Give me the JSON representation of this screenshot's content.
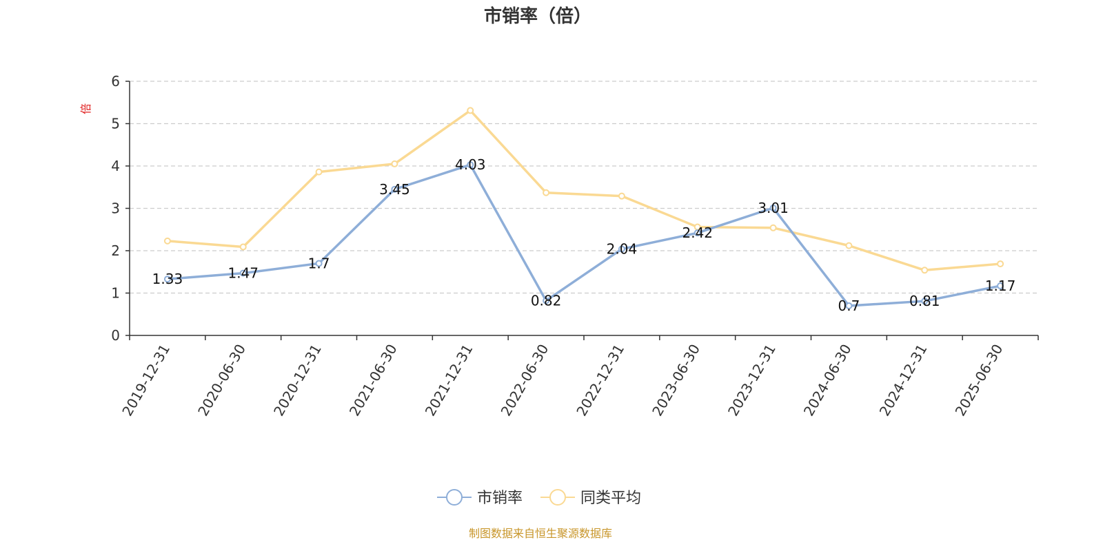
{
  "chart_data": {
    "type": "line",
    "title": "市销率（倍）",
    "ylabel": "倍",
    "ylim": [
      0,
      6
    ],
    "yticks": [
      0,
      1,
      2,
      3,
      4,
      5,
      6
    ],
    "grid": true,
    "legend_position": "bottom-center",
    "categories": [
      "2019-12-31",
      "2020-06-30",
      "2020-12-31",
      "2021-06-30",
      "2021-12-31",
      "2022-06-30",
      "2022-12-31",
      "2023-06-30",
      "2023-12-31",
      "2024-06-30",
      "2024-12-31",
      "2025-06-30"
    ],
    "series": [
      {
        "name": "市销率",
        "color": "#8eaed8",
        "values": [
          1.33,
          1.47,
          1.7,
          3.45,
          4.03,
          0.82,
          2.04,
          2.42,
          3.01,
          0.7,
          0.81,
          1.17
        ],
        "labels": [
          "1.33",
          "1.47",
          "1.7",
          "3.45",
          "4.03",
          "0.82",
          "2.04",
          "2.42",
          "3.01",
          "0.7",
          "0.81",
          "1.17"
        ]
      },
      {
        "name": "同类平均",
        "color": "#fad993",
        "values": [
          2.23,
          2.09,
          3.86,
          4.05,
          5.31,
          3.37,
          3.29,
          2.56,
          2.54,
          2.12,
          1.54,
          1.69
        ]
      }
    ],
    "unit_color": "#e02020",
    "source": "制图数据来自恒生聚源数据库",
    "source_color": "#c8962a"
  }
}
